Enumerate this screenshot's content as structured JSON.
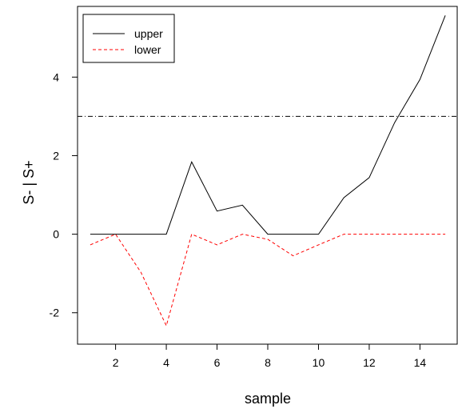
{
  "chart_data": {
    "type": "line",
    "xlabel": "sample",
    "ylabel": "S- | S+",
    "xlim": [
      0.5,
      15.5
    ],
    "ylim": [
      -2.8,
      5.8
    ],
    "x_ticks": [
      2,
      4,
      6,
      8,
      10,
      12,
      14
    ],
    "y_ticks": [
      -2,
      0,
      2,
      4
    ],
    "x": [
      1,
      2,
      3,
      4,
      5,
      6,
      7,
      8,
      9,
      10,
      11,
      12,
      13,
      14,
      15
    ],
    "series": [
      {
        "name": "upper",
        "color": "#000000",
        "dash": "solid",
        "values": [
          0,
          0,
          0,
          0,
          1.84,
          0.59,
          0.74,
          0,
          0,
          0,
          0.93,
          1.44,
          2.84,
          3.94,
          5.57
        ]
      },
      {
        "name": "lower",
        "color": "#ff0000",
        "dash": "dashed",
        "values": [
          -0.27,
          0,
          -0.97,
          -2.33,
          0,
          -0.27,
          0,
          -0.13,
          -0.55,
          -0.27,
          0,
          0,
          0,
          0,
          0
        ]
      }
    ],
    "reference_line": {
      "y": 3,
      "style": "dotdash",
      "color": "#000000"
    },
    "legend": {
      "position": "top-left",
      "entries": [
        {
          "label": "upper",
          "color": "#000000",
          "dash": "solid"
        },
        {
          "label": "lower",
          "color": "#ff0000",
          "dash": "dashed"
        }
      ]
    },
    "grid": false
  }
}
